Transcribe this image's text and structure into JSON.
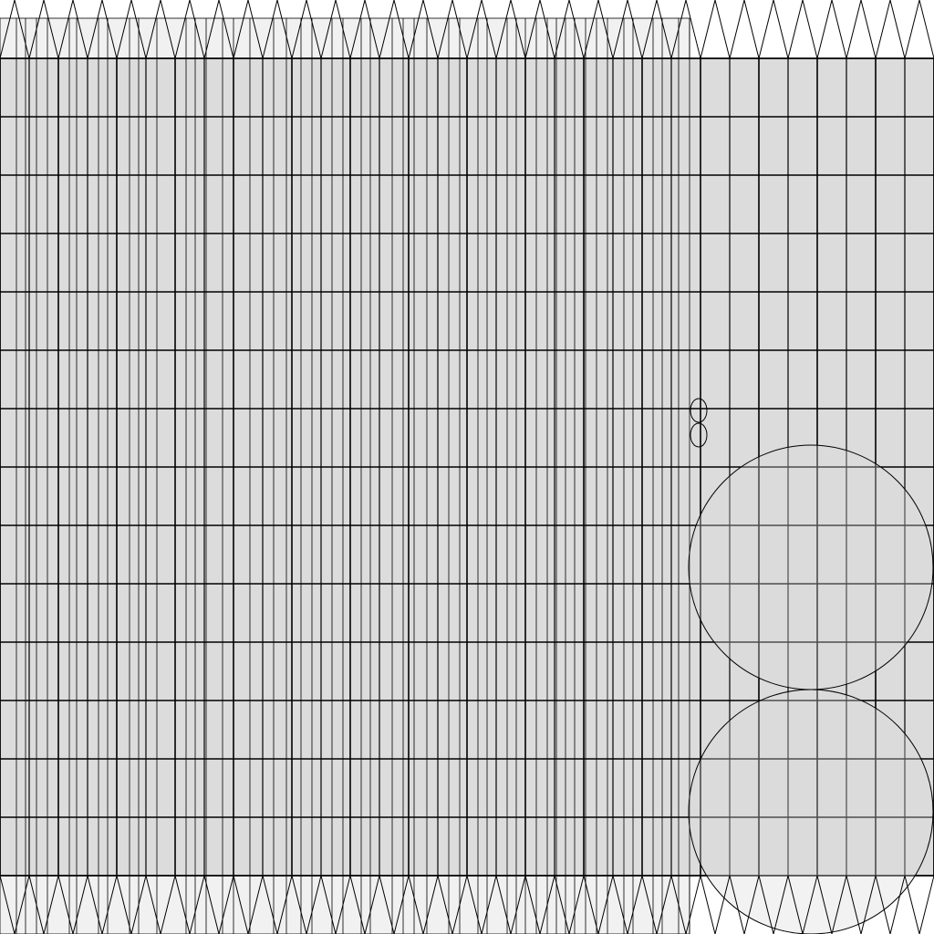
{
  "palette": {
    "background": "#ffffff",
    "panel_fill": "#dcdcdc",
    "left_band_fill": "#f1f1f1",
    "line": "#000000",
    "shape_fill": "#d9d9d9"
  }
}
